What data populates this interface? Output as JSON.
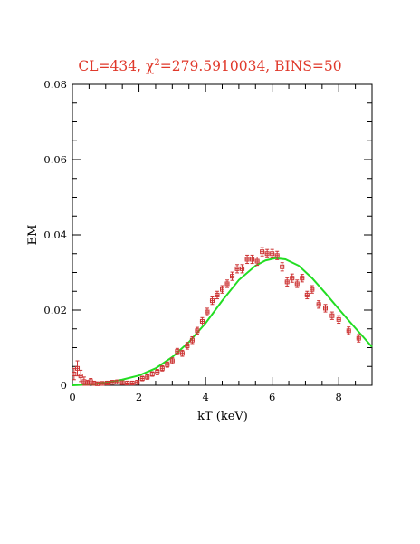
{
  "chart_data": {
    "type": "scatter",
    "title_parts": {
      "prefix": "CL=434, ",
      "chi": "χ",
      "sup": "2",
      "suffix": "=279.5910034, BINS=50"
    },
    "xlabel": "kT (keV)",
    "ylabel": "EM",
    "xlim": [
      0,
      9
    ],
    "ylim": [
      0,
      0.08
    ],
    "x_ticks": [
      0,
      2,
      4,
      6,
      8
    ],
    "x_tick_labels": [
      "0",
      "2",
      "4",
      "6",
      "8"
    ],
    "y_ticks": [
      0,
      0.02,
      0.04,
      0.06,
      0.08
    ],
    "y_tick_labels": [
      "0",
      "0.02",
      "0.04",
      "0.06",
      "0.08"
    ],
    "grid": false,
    "legend": "none",
    "colors": {
      "data": "#cc3333",
      "model": "#22dd22",
      "title": "#e0392b"
    },
    "series": [
      {
        "kind": "data-with-errorbars",
        "points": [
          [
            0.05,
            0.003,
            0.0015
          ],
          [
            0.15,
            0.0045,
            0.002
          ],
          [
            0.25,
            0.0025,
            0.0015
          ],
          [
            0.35,
            0.001,
            0.0012
          ],
          [
            0.45,
            0.0005,
            0.0008
          ],
          [
            0.55,
            0.001,
            0.0008
          ],
          [
            0.65,
            0.0005,
            0.0006
          ],
          [
            0.75,
            0.0004,
            0.0005
          ],
          [
            0.9,
            0.0005,
            0.0005
          ],
          [
            1.05,
            0.0006,
            0.0005
          ],
          [
            1.2,
            0.0008,
            0.0005
          ],
          [
            1.35,
            0.0009,
            0.0005
          ],
          [
            1.5,
            0.0007,
            0.0005
          ],
          [
            1.65,
            0.0006,
            0.0005
          ],
          [
            1.8,
            0.0006,
            0.0005
          ],
          [
            1.95,
            0.0008,
            0.0005
          ],
          [
            2.1,
            0.0018,
            0.0006
          ],
          [
            2.25,
            0.0022,
            0.0006
          ],
          [
            2.4,
            0.003,
            0.0006
          ],
          [
            2.55,
            0.0035,
            0.0007
          ],
          [
            2.7,
            0.0045,
            0.0007
          ],
          [
            2.85,
            0.0055,
            0.0007
          ],
          [
            3.0,
            0.0065,
            0.0008
          ],
          [
            3.15,
            0.009,
            0.0008
          ],
          [
            3.3,
            0.0085,
            0.0008
          ],
          [
            3.45,
            0.0105,
            0.0009
          ],
          [
            3.6,
            0.012,
            0.0009
          ],
          [
            3.75,
            0.0145,
            0.0009
          ],
          [
            3.9,
            0.017,
            0.001
          ],
          [
            4.05,
            0.0195,
            0.001
          ],
          [
            4.2,
            0.0225,
            0.001
          ],
          [
            4.35,
            0.024,
            0.001
          ],
          [
            4.5,
            0.0255,
            0.001
          ],
          [
            4.65,
            0.027,
            0.001
          ],
          [
            4.8,
            0.029,
            0.0011
          ],
          [
            4.95,
            0.031,
            0.0011
          ],
          [
            5.1,
            0.031,
            0.0011
          ],
          [
            5.25,
            0.0335,
            0.0011
          ],
          [
            5.4,
            0.0335,
            0.0011
          ],
          [
            5.55,
            0.033,
            0.0011
          ],
          [
            5.7,
            0.0355,
            0.0011
          ],
          [
            5.85,
            0.035,
            0.0011
          ],
          [
            6.0,
            0.035,
            0.0011
          ],
          [
            6.15,
            0.0345,
            0.0011
          ],
          [
            6.3,
            0.0315,
            0.0011
          ],
          [
            6.45,
            0.0275,
            0.0011
          ],
          [
            6.6,
            0.0285,
            0.0011
          ],
          [
            6.75,
            0.027,
            0.001
          ],
          [
            6.9,
            0.0285,
            0.001
          ],
          [
            7.05,
            0.024,
            0.001
          ],
          [
            7.2,
            0.0255,
            0.001
          ],
          [
            7.4,
            0.0215,
            0.001
          ],
          [
            7.6,
            0.0205,
            0.001
          ],
          [
            7.8,
            0.0185,
            0.001
          ],
          [
            8.0,
            0.0175,
            0.001
          ],
          [
            8.3,
            0.0145,
            0.001
          ],
          [
            8.6,
            0.0125,
            0.001
          ]
        ]
      },
      {
        "kind": "model-curve",
        "points": [
          [
            0,
            0
          ],
          [
            0.5,
            0.0002
          ],
          [
            1.0,
            0.0007
          ],
          [
            1.5,
            0.0015
          ],
          [
            2.0,
            0.0026
          ],
          [
            2.5,
            0.0045
          ],
          [
            3.0,
            0.0075
          ],
          [
            3.5,
            0.0115
          ],
          [
            4.0,
            0.0165
          ],
          [
            4.5,
            0.0225
          ],
          [
            5.0,
            0.028
          ],
          [
            5.5,
            0.0318
          ],
          [
            5.8,
            0.0332
          ],
          [
            6.1,
            0.0338
          ],
          [
            6.4,
            0.0335
          ],
          [
            6.8,
            0.0318
          ],
          [
            7.2,
            0.0285
          ],
          [
            7.6,
            0.0245
          ],
          [
            8.0,
            0.0203
          ],
          [
            8.4,
            0.0162
          ],
          [
            8.8,
            0.0122
          ],
          [
            9.0,
            0.0102
          ]
        ]
      }
    ]
  }
}
